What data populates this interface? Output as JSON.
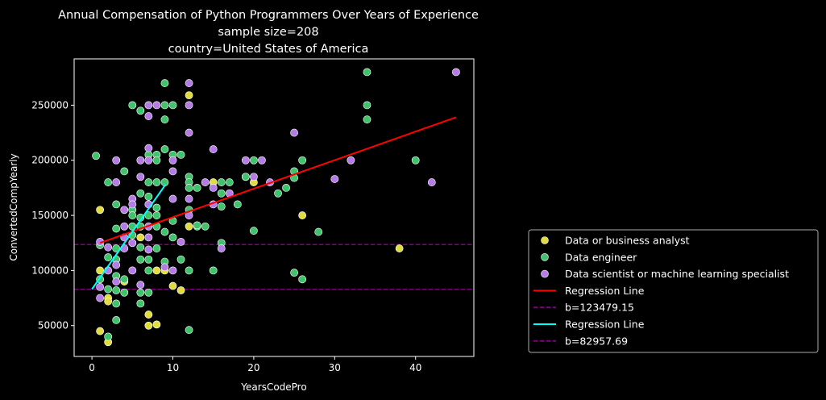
{
  "chart_data": {
    "type": "scatter",
    "title_lines": [
      "Annual Compensation of Python Programmers Over Years of Experience",
      "sample size=208",
      "country=United States of America"
    ],
    "xlabel": "YearsCodePro",
    "ylabel": "ConvertedCompYearly",
    "xlim": [
      -2.2,
      47.2
    ],
    "ylim": [
      22000,
      292000
    ],
    "x_ticks": [
      0,
      10,
      20,
      30,
      40
    ],
    "y_ticks": [
      50000,
      100000,
      150000,
      200000,
      250000
    ],
    "grid": false,
    "background": "#000000",
    "legend_placement": "lower-right outside",
    "series": [
      {
        "name": "Data or business analyst",
        "color": "#e2dd3f",
        "points": [
          [
            12,
            259000
          ],
          [
            1,
            155000
          ],
          [
            12,
            140000
          ],
          [
            6,
            130000
          ],
          [
            1,
            100000
          ],
          [
            8,
            100000
          ],
          [
            9,
            100000
          ],
          [
            4,
            90000
          ],
          [
            10,
            86000
          ],
          [
            11,
            82000
          ],
          [
            2,
            75000
          ],
          [
            2,
            72000
          ],
          [
            7,
            60000
          ],
          [
            7,
            50000
          ],
          [
            8,
            51000
          ],
          [
            1,
            45000
          ],
          [
            2,
            35000
          ],
          [
            15,
            180000
          ],
          [
            20,
            180000
          ],
          [
            26,
            150000
          ],
          [
            38,
            120000
          ]
        ]
      },
      {
        "name": "Data engineer",
        "color": "#3fc46b",
        "points": [
          [
            9,
            270000
          ],
          [
            5,
            250000
          ],
          [
            9,
            250000
          ],
          [
            10,
            250000
          ],
          [
            6,
            245000
          ],
          [
            9,
            237000
          ],
          [
            9,
            210000
          ],
          [
            7,
            205000
          ],
          [
            8,
            205000
          ],
          [
            10,
            205000
          ],
          [
            11,
            205000
          ],
          [
            0.5,
            204000
          ],
          [
            8,
            200000
          ],
          [
            4,
            190000
          ],
          [
            12,
            185000
          ],
          [
            2,
            180000
          ],
          [
            7,
            180000
          ],
          [
            8,
            180000
          ],
          [
            9,
            180000
          ],
          [
            12,
            180000
          ],
          [
            12,
            175000
          ],
          [
            13,
            175000
          ],
          [
            6,
            170000
          ],
          [
            7,
            167000
          ],
          [
            3,
            160000
          ],
          [
            5,
            155000
          ],
          [
            8,
            157000
          ],
          [
            12,
            155000
          ],
          [
            5,
            150000
          ],
          [
            6,
            148000
          ],
          [
            7,
            150000
          ],
          [
            8,
            150000
          ],
          [
            10,
            145000
          ],
          [
            3,
            138000
          ],
          [
            5,
            140000
          ],
          [
            6,
            140000
          ],
          [
            8,
            140000
          ],
          [
            9,
            135000
          ],
          [
            13,
            140000
          ],
          [
            5,
            132000
          ],
          [
            10,
            130000
          ],
          [
            1,
            123000
          ],
          [
            3,
            120000
          ],
          [
            6,
            121000
          ],
          [
            8,
            120000
          ],
          [
            2,
            112000
          ],
          [
            3,
            110000
          ],
          [
            6,
            110000
          ],
          [
            7,
            110000
          ],
          [
            9,
            108000
          ],
          [
            11,
            110000
          ],
          [
            7,
            100000
          ],
          [
            12,
            100000
          ],
          [
            3,
            95000
          ],
          [
            4,
            92000
          ],
          [
            1,
            92000
          ],
          [
            2,
            83000
          ],
          [
            3,
            82000
          ],
          [
            4,
            80000
          ],
          [
            6,
            80000
          ],
          [
            7,
            80000
          ],
          [
            3,
            70000
          ],
          [
            6,
            70000
          ],
          [
            3,
            55000
          ],
          [
            12,
            46000
          ],
          [
            2,
            40000
          ],
          [
            16,
            180000
          ],
          [
            17,
            180000
          ],
          [
            16,
            170000
          ],
          [
            16,
            158000
          ],
          [
            18,
            160000
          ],
          [
            19,
            185000
          ],
          [
            20,
            200000
          ],
          [
            26,
            200000
          ],
          [
            19,
            185000
          ],
          [
            25,
            190000
          ],
          [
            25,
            184000
          ],
          [
            23,
            170000
          ],
          [
            24,
            175000
          ],
          [
            13,
            141000
          ],
          [
            14,
            140000
          ],
          [
            20,
            136000
          ],
          [
            28,
            135000
          ],
          [
            16,
            125000
          ],
          [
            15,
            100000
          ],
          [
            25,
            98000
          ],
          [
            26,
            92000
          ],
          [
            34,
            280000
          ],
          [
            34,
            250000
          ],
          [
            34,
            237000
          ],
          [
            40,
            200000
          ]
        ]
      },
      {
        "name": "Data scientist or machine learning specialist",
        "color": "#b57be6",
        "points": [
          [
            12,
            270000
          ],
          [
            7,
            250000
          ],
          [
            8,
            250000
          ],
          [
            12,
            250000
          ],
          [
            7,
            240000
          ],
          [
            12,
            225000
          ],
          [
            7,
            211000
          ],
          [
            3,
            200000
          ],
          [
            6,
            200000
          ],
          [
            7,
            200000
          ],
          [
            10,
            200000
          ],
          [
            6,
            185000
          ],
          [
            10,
            190000
          ],
          [
            3,
            180000
          ],
          [
            14,
            180000
          ],
          [
            5,
            165000
          ],
          [
            10,
            165000
          ],
          [
            12,
            165000
          ],
          [
            5,
            160000
          ],
          [
            7,
            160000
          ],
          [
            4,
            155000
          ],
          [
            12,
            150000
          ],
          [
            4,
            140000
          ],
          [
            7,
            140000
          ],
          [
            7,
            130000
          ],
          [
            4,
            130000
          ],
          [
            1,
            126000
          ],
          [
            11,
            126000
          ],
          [
            5,
            125000
          ],
          [
            2,
            121000
          ],
          [
            4,
            120000
          ],
          [
            7,
            119000
          ],
          [
            9,
            103000
          ],
          [
            3,
            105000
          ],
          [
            2,
            100000
          ],
          [
            5,
            100000
          ],
          [
            10,
            100000
          ],
          [
            3,
            90000
          ],
          [
            1,
            85000
          ],
          [
            6,
            87000
          ],
          [
            1,
            75000
          ],
          [
            15,
            210000
          ],
          [
            15,
            175000
          ],
          [
            17,
            170000
          ],
          [
            15,
            160000
          ],
          [
            16,
            120000
          ],
          [
            19,
            200000
          ],
          [
            21,
            200000
          ],
          [
            20,
            185000
          ],
          [
            22,
            180000
          ],
          [
            25,
            225000
          ],
          [
            30,
            183000
          ],
          [
            32,
            200000
          ],
          [
            42,
            180000
          ],
          [
            45,
            280000
          ]
        ]
      }
    ],
    "lines": [
      {
        "name": "Regression Line",
        "color": "#ff0000",
        "style": "solid",
        "from": [
          1,
          125000
        ],
        "to": [
          45,
          239000
        ]
      },
      {
        "name": "b=123479.15",
        "color": "#800080",
        "style": "dashed",
        "y": 123479.15
      },
      {
        "name": "Regression Line",
        "color": "#00ffff",
        "style": "solid",
        "from": [
          0,
          83000
        ],
        "to": [
          9.1,
          178000
        ]
      },
      {
        "name": "b=82957.69",
        "color": "#800080",
        "style": "dashed",
        "y": 82957.69
      }
    ],
    "legend": [
      {
        "label": "Data or business analyst",
        "kind": "marker",
        "color": "#e2dd3f"
      },
      {
        "label": "Data engineer",
        "kind": "marker",
        "color": "#3fc46b"
      },
      {
        "label": "Data scientist or machine learning specialist",
        "kind": "marker",
        "color": "#b57be6"
      },
      {
        "label": "Regression Line",
        "kind": "line",
        "color": "#ff0000",
        "dashed": false
      },
      {
        "label": "b=123479.15",
        "kind": "line",
        "color": "#800080",
        "dashed": true
      },
      {
        "label": "Regression Line",
        "kind": "line",
        "color": "#00ffff",
        "dashed": false
      },
      {
        "label": "b=82957.69",
        "kind": "line",
        "color": "#800080",
        "dashed": true
      }
    ]
  }
}
